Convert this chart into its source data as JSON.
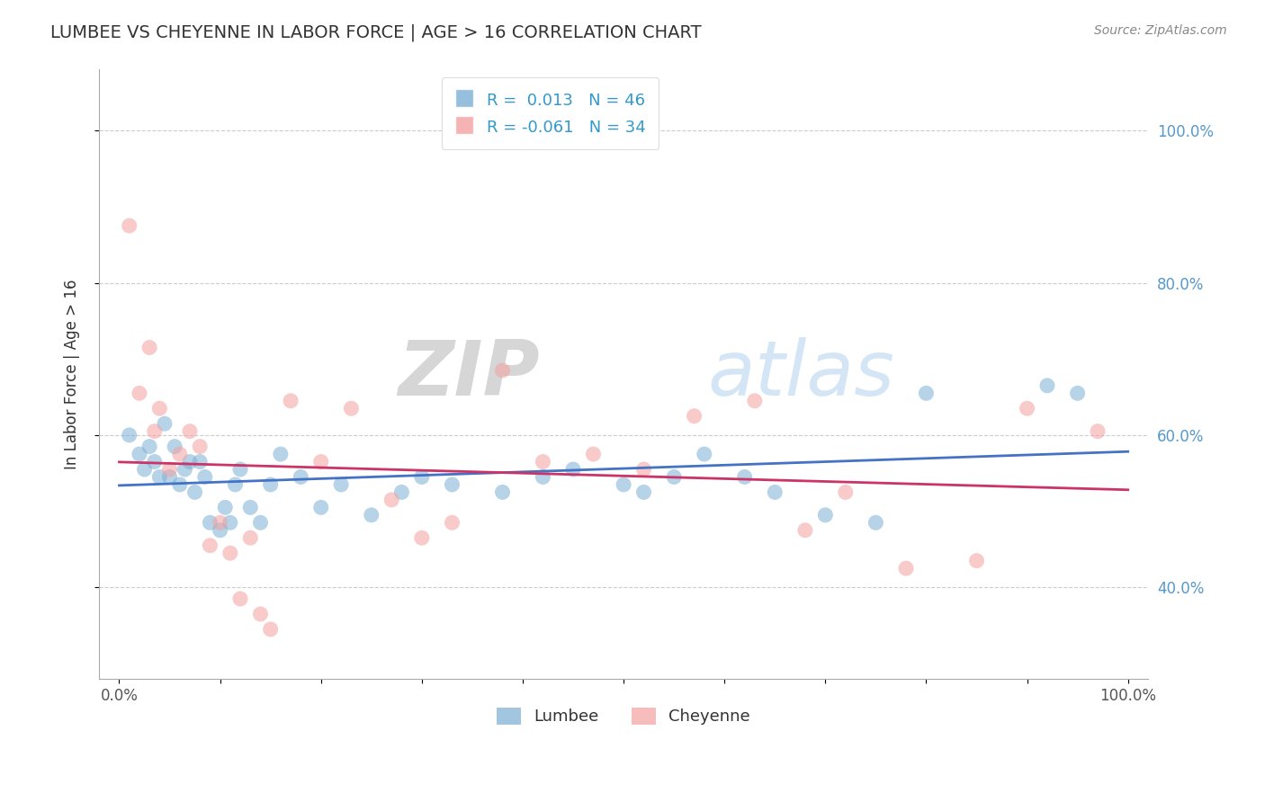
{
  "title": "LUMBEE VS CHEYENNE IN LABOR FORCE | AGE > 16 CORRELATION CHART",
  "source_text": "Source: ZipAtlas.com",
  "ylabel": "In Labor Force | Age > 16",
  "xlim": [
    -0.02,
    1.02
  ],
  "ylim": [
    0.28,
    1.08
  ],
  "x_ticks": [
    0.0,
    0.1,
    0.2,
    0.3,
    0.4,
    0.5,
    0.6,
    0.7,
    0.8,
    0.9,
    1.0
  ],
  "x_tick_labels": [
    "0.0%",
    "",
    "",
    "",
    "",
    "",
    "",
    "",
    "",
    "",
    "100.0%"
  ],
  "y_ticks": [
    0.4,
    0.6,
    0.8,
    1.0
  ],
  "y_tick_labels": [
    "40.0%",
    "60.0%",
    "80.0%",
    "100.0%"
  ],
  "lumbee_color": "#7BAFD4",
  "cheyenne_color": "#F4A0A0",
  "lumbee_line_color": "#4472C4",
  "cheyenne_line_color": "#CC3366",
  "background_color": "#ffffff",
  "grid_color": "#cccccc",
  "lumbee_R": 0.013,
  "lumbee_N": 46,
  "cheyenne_R": -0.061,
  "cheyenne_N": 34,
  "lumbee_x": [
    0.01,
    0.02,
    0.025,
    0.03,
    0.035,
    0.04,
    0.045,
    0.05,
    0.055,
    0.06,
    0.065,
    0.07,
    0.075,
    0.08,
    0.085,
    0.09,
    0.1,
    0.105,
    0.11,
    0.115,
    0.12,
    0.13,
    0.14,
    0.15,
    0.16,
    0.18,
    0.2,
    0.22,
    0.25,
    0.28,
    0.3,
    0.33,
    0.38,
    0.42,
    0.45,
    0.5,
    0.52,
    0.55,
    0.58,
    0.62,
    0.65,
    0.7,
    0.75,
    0.8,
    0.92,
    0.95
  ],
  "lumbee_y": [
    0.6,
    0.575,
    0.555,
    0.585,
    0.565,
    0.545,
    0.615,
    0.545,
    0.585,
    0.535,
    0.555,
    0.565,
    0.525,
    0.565,
    0.545,
    0.485,
    0.475,
    0.505,
    0.485,
    0.535,
    0.555,
    0.505,
    0.485,
    0.535,
    0.575,
    0.545,
    0.505,
    0.535,
    0.495,
    0.525,
    0.545,
    0.535,
    0.525,
    0.545,
    0.555,
    0.535,
    0.525,
    0.545,
    0.575,
    0.545,
    0.525,
    0.495,
    0.485,
    0.655,
    0.665,
    0.655
  ],
  "cheyenne_x": [
    0.01,
    0.02,
    0.03,
    0.035,
    0.04,
    0.05,
    0.06,
    0.07,
    0.08,
    0.09,
    0.1,
    0.11,
    0.12,
    0.13,
    0.14,
    0.15,
    0.17,
    0.2,
    0.23,
    0.27,
    0.3,
    0.33,
    0.38,
    0.42,
    0.47,
    0.52,
    0.57,
    0.63,
    0.68,
    0.72,
    0.78,
    0.85,
    0.9,
    0.97
  ],
  "cheyenne_y": [
    0.875,
    0.655,
    0.715,
    0.605,
    0.635,
    0.555,
    0.575,
    0.605,
    0.585,
    0.455,
    0.485,
    0.445,
    0.385,
    0.465,
    0.365,
    0.345,
    0.645,
    0.565,
    0.635,
    0.515,
    0.465,
    0.485,
    0.685,
    0.565,
    0.575,
    0.555,
    0.625,
    0.645,
    0.475,
    0.525,
    0.425,
    0.435,
    0.635,
    0.605
  ],
  "watermark_zip": "ZIP",
  "watermark_atlas": "atlas",
  "legend_lumbee_label": "Lumbee",
  "legend_cheyenne_label": "Cheyenne"
}
